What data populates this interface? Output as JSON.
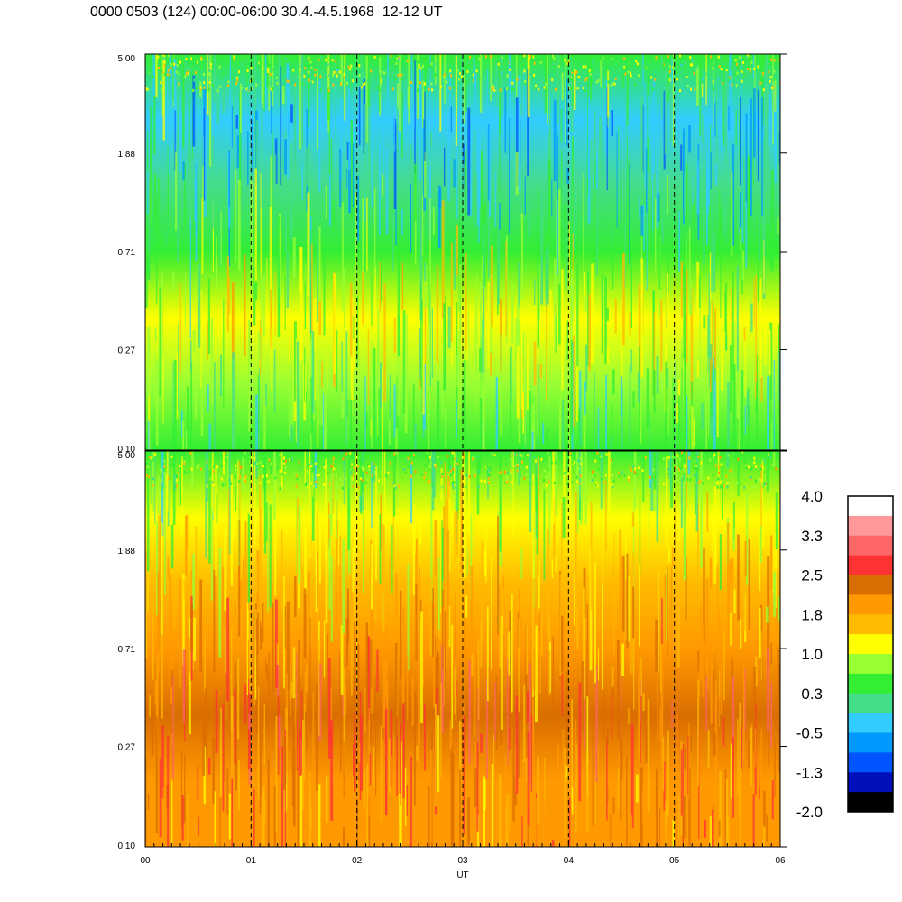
{
  "title": "0000 0503 (124) 00:00-06:00 30.4.-4.5.1968  12-12 UT",
  "chart_data": {
    "type": "heatmap",
    "panels": [
      {
        "name": "upper",
        "ytick_labels": [
          "5.00",
          "1.88",
          "0.71",
          "0.27",
          "0.10"
        ],
        "yticks": [
          5.0,
          1.88,
          0.71,
          0.27,
          0.1
        ],
        "ylim": [
          0.1,
          5.0
        ],
        "yscale": "log",
        "dominant_levels_low_to_high_freq": [
          0.3,
          0.8,
          1.0,
          0.6,
          0.0,
          -0.4,
          0.4
        ]
      },
      {
        "name": "lower",
        "ytick_labels": [
          "5.00",
          "1.88",
          "0.71",
          "0.27",
          "0.10"
        ],
        "yticks": [
          5.0,
          1.88,
          0.71,
          0.27,
          0.1
        ],
        "ylim": [
          0.1,
          5.0
        ],
        "yscale": "log",
        "dominant_levels_low_to_high_freq": [
          1.9,
          2.1,
          2.3,
          1.8,
          1.6,
          1.2,
          0.6
        ]
      }
    ],
    "xlabel": "UT",
    "x_tick_labels": [
      "00",
      "01",
      "02",
      "03",
      "04",
      "05",
      "06"
    ],
    "xlim": [
      0,
      6
    ],
    "vertical_dashed_lines_at": [
      1,
      2,
      3,
      4,
      5
    ],
    "colorbar": {
      "labels": [
        "4.0",
        "3.3",
        "2.5",
        "1.8",
        "1.0",
        "0.3",
        "-0.5",
        "-1.3",
        "-2.0"
      ],
      "range": [
        -2.0,
        4.0
      ],
      "colors_top_to_bottom": [
        "#ffffff",
        "#ff9999",
        "#ff6666",
        "#ff3333",
        "#d96e00",
        "#ff9900",
        "#ffbb00",
        "#ffff00",
        "#99ff33",
        "#33ee33",
        "#44dd88",
        "#33ccff",
        "#0099ff",
        "#0055ff",
        "#0011bb",
        "#000000"
      ]
    }
  }
}
